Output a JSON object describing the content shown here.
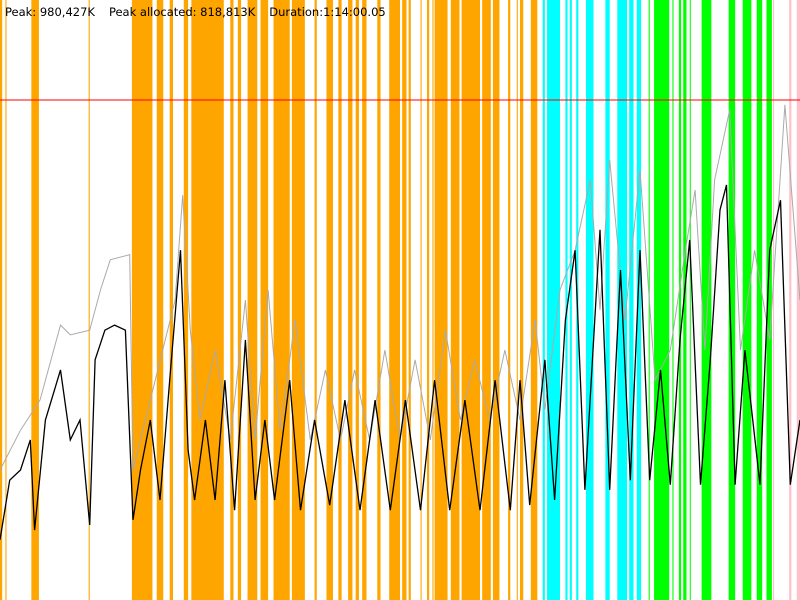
{
  "header": {
    "peak": "Peak: 980,427K",
    "peak_allocated": "Peak allocated: 818,813K",
    "duration": "Duration:1:14:00.05"
  },
  "chart_data": {
    "type": "line",
    "title": "",
    "xlabel": "",
    "ylabel": "",
    "x_unit": "minutes",
    "y_unit": "K",
    "xlim": [
      0,
      74
    ],
    "ylim": [
      0,
      1176512
    ],
    "grid": false,
    "peak_line": {
      "value": 980427,
      "color": "#ff0000"
    },
    "band_colors": {
      "orange": "#ffa500",
      "cyan": "#00ffff",
      "green": "#00ff00",
      "pink": "#ffc0cb"
    },
    "bands": [
      [
        "orange",
        0.0,
        0.2
      ],
      [
        "orange",
        0.5,
        0.6
      ],
      [
        "orange",
        2.9,
        3.6
      ],
      [
        "orange",
        8.2,
        8.3
      ],
      [
        "orange",
        12.2,
        14.1
      ],
      [
        "orange",
        14.5,
        15.1
      ],
      [
        "orange",
        15.7,
        16.0
      ],
      [
        "orange",
        17.0,
        17.4
      ],
      [
        "orange",
        17.7,
        20.7
      ],
      [
        "orange",
        21.3,
        21.6
      ],
      [
        "orange",
        22.0,
        22.3
      ],
      [
        "orange",
        22.9,
        23.8
      ],
      [
        "orange",
        24.1,
        24.8
      ],
      [
        "orange",
        25.3,
        26.8
      ],
      [
        "orange",
        27.0,
        28.2
      ],
      [
        "orange",
        29.1,
        29.3
      ],
      [
        "orange",
        30.2,
        30.8
      ],
      [
        "orange",
        31.3,
        31.6
      ],
      [
        "orange",
        32.2,
        32.6
      ],
      [
        "orange",
        32.9,
        33.2
      ],
      [
        "orange",
        33.5,
        33.9
      ],
      [
        "orange",
        34.9,
        35.2
      ],
      [
        "orange",
        36.0,
        37.0
      ],
      [
        "orange",
        37.2,
        37.6
      ],
      [
        "orange",
        37.8,
        38.0
      ],
      [
        "orange",
        38.9,
        39.0
      ],
      [
        "orange",
        39.5,
        39.7
      ],
      [
        "orange",
        40.0,
        40.1
      ],
      [
        "orange",
        40.2,
        41.4
      ],
      [
        "orange",
        41.7,
        42.5
      ],
      [
        "orange",
        42.7,
        44.4
      ],
      [
        "orange",
        44.6,
        45.4
      ],
      [
        "orange",
        45.6,
        46.2
      ],
      [
        "orange",
        47.0,
        47.2
      ],
      [
        "orange",
        47.8,
        47.9
      ],
      [
        "orange",
        48.1,
        48.4
      ],
      [
        "orange",
        49.1,
        49.7
      ],
      [
        "cyan",
        50.2,
        50.4
      ],
      [
        "cyan",
        50.6,
        51.8
      ],
      [
        "cyan",
        52.3,
        52.5
      ],
      [
        "cyan",
        52.7,
        52.9
      ],
      [
        "cyan",
        53.3,
        53.5
      ],
      [
        "cyan",
        54.2,
        54.9
      ],
      [
        "cyan",
        56.0,
        56.4
      ],
      [
        "cyan",
        57.1,
        58.0
      ],
      [
        "cyan",
        58.2,
        58.6
      ],
      [
        "cyan",
        58.9,
        59.3
      ],
      [
        "green",
        60.0,
        60.1
      ],
      [
        "green",
        60.5,
        61.9
      ],
      [
        "green",
        62.2,
        62.3
      ],
      [
        "green",
        62.8,
        63.0
      ],
      [
        "green",
        63.2,
        63.5
      ],
      [
        "green",
        63.8,
        63.9
      ],
      [
        "green",
        64.9,
        65.8
      ],
      [
        "green",
        67.4,
        68.0
      ],
      [
        "green",
        68.7,
        69.5
      ],
      [
        "green",
        70.0,
        70.5
      ],
      [
        "green",
        70.9,
        71.4
      ],
      [
        "pink",
        71.5,
        71.6
      ],
      [
        "pink",
        73.0,
        73.2
      ],
      [
        "pink",
        73.7,
        74.0
      ]
    ],
    "series": [
      {
        "color": "#aaaaaa",
        "x": [
          0,
          1.9,
          3.7,
          5.6,
          6.5,
          8.3,
          9.3,
          10.2,
          12.0,
          12.3,
          13.9,
          16.2,
          16.9,
          17.6,
          18.5,
          19.9,
          21.3,
          22.7,
          23.6,
          24.8,
          25.9,
          27.3,
          28.7,
          30.1,
          31.5,
          32.8,
          34.2,
          35.6,
          37.0,
          38.4,
          39.8,
          41.2,
          42.6,
          43.9,
          45.3,
          46.7,
          48.1,
          49.5,
          50.4,
          51.8,
          53.2,
          54.6,
          55.5,
          56.4,
          57.8,
          59.2,
          60.6,
          62.0,
          63.4,
          64.3,
          65.2,
          66.1,
          67.5,
          68.5,
          69.8,
          71.2,
          72.6,
          74.0
        ],
        "y": [
          255000,
          333000,
          392000,
          539000,
          520000,
          529000,
          608000,
          667000,
          677000,
          255000,
          392000,
          588000,
          794000,
          529000,
          353000,
          490000,
          314000,
          588000,
          314000,
          608000,
          333000,
          549000,
          314000,
          451000,
          314000,
          451000,
          314000,
          490000,
          314000,
          471000,
          314000,
          529000,
          353000,
          471000,
          353000,
          490000,
          353000,
          549000,
          373000,
          608000,
          686000,
          824000,
          569000,
          863000,
          549000,
          843000,
          431000,
          490000,
          686000,
          804000,
          490000,
          824000,
          961000,
          490000,
          686000,
          510000,
          971000,
          588000
        ]
      },
      {
        "color": "#000000",
        "x": [
          0,
          0.9,
          1.9,
          2.8,
          3.2,
          4.2,
          5.6,
          6.5,
          7.4,
          8.3,
          8.8,
          9.7,
          10.6,
          11.6,
          12.3,
          13.0,
          13.9,
          14.8,
          15.7,
          16.7,
          17.4,
          18.0,
          19.0,
          19.9,
          20.8,
          21.7,
          22.7,
          23.6,
          24.5,
          25.4,
          26.8,
          27.8,
          29.1,
          30.5,
          31.9,
          33.3,
          34.7,
          36.1,
          37.5,
          38.9,
          40.2,
          41.6,
          43.0,
          44.4,
          45.8,
          47.2,
          48.1,
          49.0,
          50.4,
          51.3,
          52.3,
          53.2,
          54.1,
          55.5,
          56.4,
          57.4,
          58.3,
          59.2,
          60.1,
          61.1,
          62.0,
          62.9,
          63.8,
          64.8,
          65.7,
          66.6,
          67.2,
          68.0,
          68.9,
          70.3,
          71.2,
          72.2,
          73.1,
          74.0
        ],
        "y": [
          118000,
          235000,
          255000,
          314000,
          137000,
          353000,
          451000,
          314000,
          353000,
          147000,
          471000,
          529000,
          539000,
          529000,
          157000,
          255000,
          353000,
          196000,
          431000,
          686000,
          294000,
          196000,
          353000,
          196000,
          431000,
          176000,
          510000,
          196000,
          353000,
          196000,
          431000,
          176000,
          353000,
          186000,
          392000,
          176000,
          392000,
          176000,
          392000,
          176000,
          431000,
          176000,
          392000,
          176000,
          431000,
          176000,
          431000,
          186000,
          471000,
          196000,
          549000,
          686000,
          216000,
          726000,
          216000,
          647000,
          235000,
          686000,
          235000,
          451000,
          226000,
          510000,
          706000,
          226000,
          471000,
          765000,
          814000,
          226000,
          490000,
          226000,
          686000,
          784000,
          226000,
          353000
        ]
      }
    ]
  }
}
